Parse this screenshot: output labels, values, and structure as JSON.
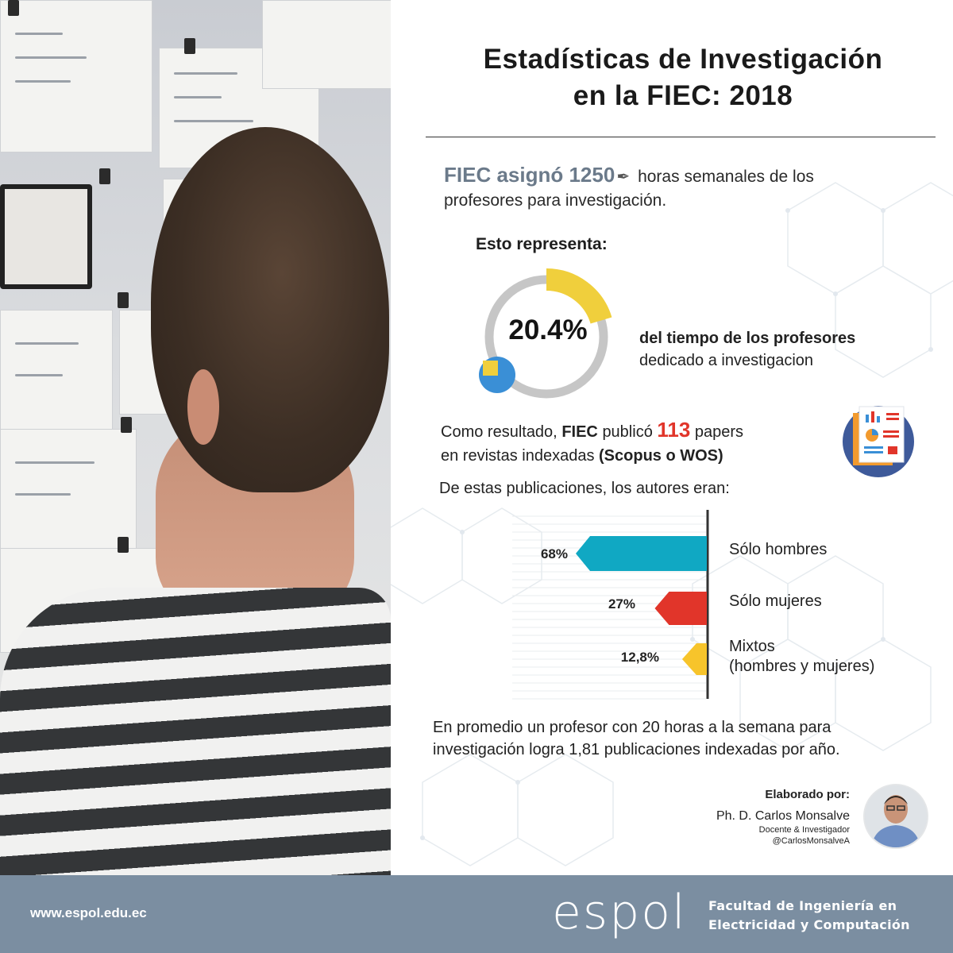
{
  "title": {
    "line1": "Estadísticas de Investigación",
    "line2": "en la FIEC: 2018"
  },
  "assignment": {
    "prefix": "FIEC asignó 1250",
    "rest": "horas semanales de los",
    "line2": "profesores para investigación."
  },
  "represent_label": "Esto representa:",
  "percentage": {
    "value_text": "20.4%",
    "fraction": 0.204,
    "desc_bold": "del tiempo de los profesores",
    "desc": "dedicado a investigacion"
  },
  "papers": {
    "pre": "Como resultado,",
    "fiec": "FIEC",
    "publico": "publicó",
    "count": "113",
    "post": "papers",
    "line2": "en revistas indexadas",
    "line2_bold": "(Scopus o WOS)"
  },
  "authors_intro": "De estas publicaciones, los autores eran:",
  "chart_data": {
    "type": "bar",
    "orientation": "horizontal",
    "categories": [
      "Sólo hombres",
      "Sólo mujeres",
      "Mixtos (hombres y mujeres)"
    ],
    "values": [
      68,
      27,
      12.8
    ],
    "value_labels": [
      "68%",
      "27%",
      "12,8%"
    ],
    "category_labels": {
      "hombres": "Sólo hombres",
      "mujeres": "Sólo mujeres",
      "mixtos_1": "Mixtos",
      "mixtos_2": "(hombres y mujeres)"
    },
    "colors": [
      "#10a8c3",
      "#e1352a",
      "#f7c42b"
    ]
  },
  "summary": {
    "line1": "En promedio un profesor con 20 horas a la semana para",
    "line2": "investigación logra 1,81 publicaciones indexadas por año."
  },
  "author": {
    "heading": "Elaborado por:",
    "name": "Ph. D. Carlos Monsalve",
    "role": "Docente & Investigador",
    "handle": "@CarlosMonsalveA"
  },
  "footer": {
    "url": "www.espol.edu.ec",
    "logo": "espol",
    "faculty_line1": "Facultad de Ingeniería en",
    "faculty_line2": "Electricidad y Computación"
  },
  "colors": {
    "donut_track": "#c6c6c6",
    "donut_fill": "#f0cf3c",
    "accent_blue": "#3a8fd6",
    "footer_bg": "#7b8ea1",
    "highlight_red": "#e1352a"
  },
  "icons": [
    "pin-icon",
    "report-document-icon",
    "clock-icon"
  ]
}
